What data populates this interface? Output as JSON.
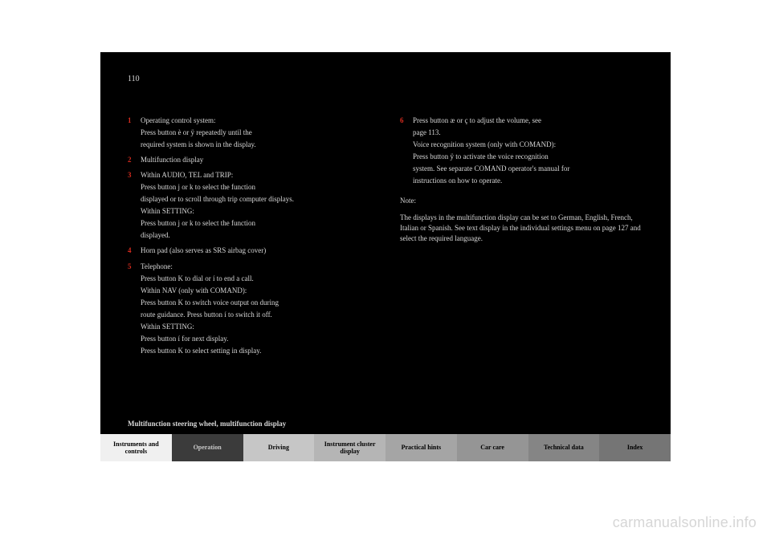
{
  "page_number": "110",
  "left_column": {
    "items": [
      {
        "num": "1",
        "lines": [
          "Operating control system:",
          "Press button è or ÿ repeatedly until the",
          "required system is shown in the display."
        ]
      },
      {
        "num": "2",
        "lines": [
          "Multifunction display"
        ]
      },
      {
        "num": "3",
        "lines": [
          "Within AUDIO, TEL and TRIP:",
          "Press button j or k to select the function",
          "displayed or to scroll through trip computer displays.",
          "Within SETTING:",
          "Press button j or k to select the function",
          "displayed."
        ]
      },
      {
        "num": "4",
        "lines": [
          "Horn pad (also serves as SRS airbag cover)"
        ]
      },
      {
        "num": "5",
        "lines": [
          "Telephone:",
          "Press button K to dial or í to end a call.",
          "Within NAV (only with COMAND):",
          "Press button K to switch voice output on during",
          "route guidance. Press button í to switch it off.",
          "Within SETTING:",
          "Press button í for next display.",
          "Press button K to select setting in display."
        ]
      }
    ]
  },
  "right_column": {
    "items": [
      {
        "num": "6",
        "lines": [
          "Press button æ or ç to adjust the volume, see",
          "page 113.",
          "Voice recognition system (only with COMAND):",
          "Press button ÿ to activate the voice recognition",
          "system. See separate COMAND operator's manual for",
          "instructions on how to operate."
        ]
      }
    ],
    "note": "Note:",
    "note_text": "The displays in the multifunction display can be set to German, English, French, Italian or Spanish. See text display in the individual settings menu on page 127 and select the required language."
  },
  "section_title": "Multifunction steering wheel, multifunction display",
  "tabs": [
    "Instruments and controls",
    "Operation",
    "Driving",
    "Instrument cluster display",
    "Practical hints",
    "Car care",
    "Technical data",
    "Index"
  ],
  "tab_colors": [
    "#f0f0f0",
    "#3b3b3b",
    "#c6c6c6",
    "#b5b5b5",
    "#a5a5a5",
    "#959595",
    "#858585",
    "#757575"
  ],
  "active_tab_index": 1,
  "watermark": "carmanualsonline.info"
}
